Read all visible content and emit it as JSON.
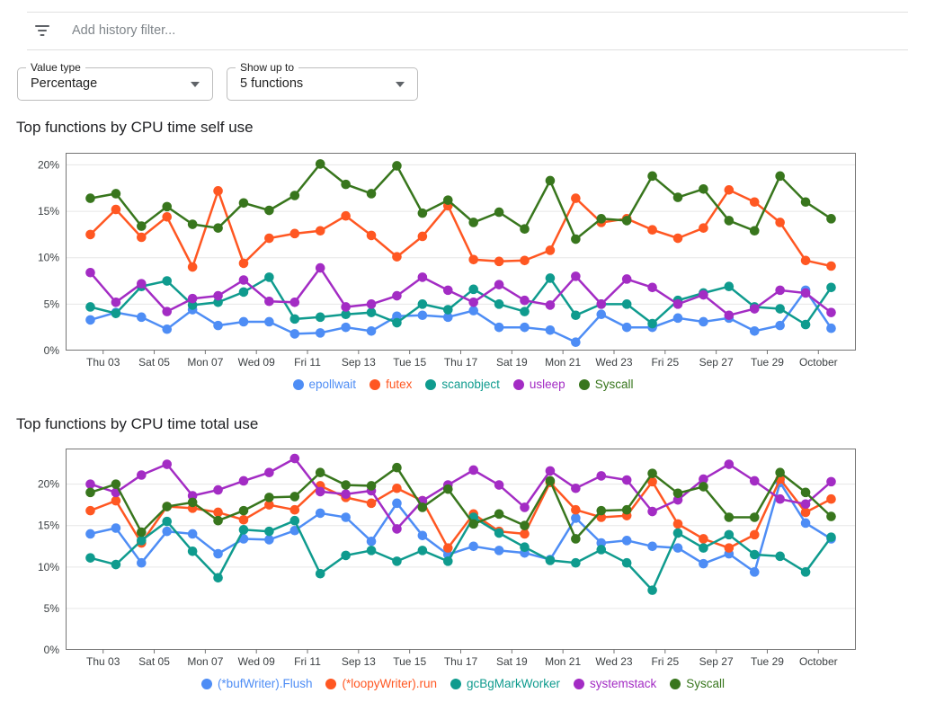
{
  "filter_bar": {
    "icon": "filter-icon",
    "placeholder": "Add history filter..."
  },
  "controls": [
    {
      "label": "Value type",
      "value": "Percentage"
    },
    {
      "label": "Show up to",
      "value": "5 functions"
    }
  ],
  "chart_data": [
    {
      "type": "line",
      "title": "Top functions by CPU time self use",
      "categories": [
        "Thu 03",
        "Sat 05",
        "Mon 07",
        "Wed 09",
        "Fri 11",
        "Sep 13",
        "Tue 15",
        "Thu 17",
        "Sat 19",
        "Mon 21",
        "Wed 23",
        "Fri 25",
        "Sep 27",
        "Tue 29",
        "October"
      ],
      "ytick_labels": [
        "0%",
        "5%",
        "10%",
        "15%",
        "20%"
      ],
      "yticks": [
        0,
        5,
        10,
        15,
        20
      ],
      "ylim": [
        0,
        21.3
      ],
      "grid": "horizontal",
      "legend_position": "bottom",
      "series": [
        {
          "name": "epollwait",
          "color": "#4e8df5",
          "values": [
            3.3,
            4.1,
            3.6,
            2.3,
            4.4,
            2.7,
            3.1,
            3.1,
            1.8,
            1.9,
            2.5,
            2.1,
            3.7,
            3.8,
            3.6,
            4.3,
            2.5,
            2.5,
            2.2,
            0.9,
            3.9,
            2.5,
            2.5,
            3.5,
            3.1,
            3.5,
            2.1,
            2.7,
            6.5,
            2.4
          ]
        },
        {
          "name": "futex",
          "color": "#ff5722",
          "values": [
            12.5,
            15.2,
            12.2,
            14.4,
            9.0,
            17.2,
            9.4,
            12.1,
            12.6,
            12.9,
            14.5,
            12.4,
            10.1,
            12.3,
            15.6,
            9.8,
            9.6,
            9.7,
            10.8,
            16.4,
            13.8,
            14.2,
            13.0,
            12.1,
            13.2,
            17.3,
            16.0,
            13.8,
            9.7,
            9.1
          ]
        },
        {
          "name": "scanobject",
          "color": "#0f9b8e",
          "values": [
            4.7,
            4.0,
            6.9,
            7.5,
            4.9,
            5.2,
            6.3,
            7.9,
            3.4,
            3.6,
            3.9,
            4.1,
            3.0,
            5.0,
            4.4,
            6.6,
            5.0,
            4.2,
            7.8,
            3.8,
            5.0,
            5.0,
            2.9,
            5.4,
            6.2,
            6.9,
            4.7,
            4.5,
            2.8,
            6.8
          ]
        },
        {
          "name": "usleep",
          "color": "#a32cc4",
          "values": [
            8.4,
            5.2,
            7.2,
            4.2,
            5.6,
            5.9,
            7.6,
            5.3,
            5.2,
            8.9,
            4.7,
            5.0,
            5.9,
            7.9,
            6.5,
            5.2,
            7.1,
            5.4,
            4.9,
            8.0,
            5.0,
            7.7,
            6.8,
            5.0,
            6.0,
            3.8,
            4.5,
            6.5,
            6.2,
            4.1
          ]
        },
        {
          "name": "Syscall",
          "color": "#38761d",
          "values": [
            16.4,
            16.9,
            13.4,
            15.5,
            13.6,
            13.2,
            15.9,
            15.1,
            16.7,
            20.1,
            17.9,
            16.9,
            19.9,
            14.8,
            16.2,
            13.8,
            14.9,
            13.1,
            18.3,
            12.0,
            14.2,
            14.0,
            18.8,
            16.5,
            17.4,
            14.0,
            12.9,
            18.8,
            16.0,
            14.2
          ]
        }
      ]
    },
    {
      "type": "line",
      "title": "Top functions by CPU time total use",
      "categories": [
        "Thu 03",
        "Sat 05",
        "Mon 07",
        "Wed 09",
        "Fri 11",
        "Sep 13",
        "Tue 15",
        "Thu 17",
        "Sat 19",
        "Mon 21",
        "Wed 23",
        "Fri 25",
        "Sep 27",
        "Tue 29",
        "October"
      ],
      "ytick_labels": [
        "0%",
        "5%",
        "10%",
        "15%",
        "20%"
      ],
      "yticks": [
        0,
        5,
        10,
        15,
        20
      ],
      "ylim": [
        0,
        24.3
      ],
      "grid": "horizontal",
      "legend_position": "bottom",
      "series": [
        {
          "name": "(*bufWriter).Flush",
          "color": "#4e8df5",
          "values": [
            14.0,
            14.7,
            10.5,
            14.3,
            14.0,
            11.6,
            13.4,
            13.3,
            14.4,
            16.5,
            16.0,
            13.1,
            17.7,
            13.8,
            11.5,
            12.5,
            12.0,
            11.7,
            10.9,
            15.9,
            12.9,
            13.2,
            12.5,
            12.3,
            10.4,
            11.6,
            9.4,
            20.2,
            15.3,
            13.4
          ]
        },
        {
          "name": "(*loopyWriter).run",
          "color": "#ff5722",
          "values": [
            16.8,
            18.0,
            12.9,
            17.3,
            17.1,
            16.6,
            15.7,
            17.5,
            16.9,
            19.8,
            18.4,
            17.7,
            19.5,
            18.0,
            12.3,
            16.4,
            14.3,
            14.0,
            20.2,
            16.9,
            16.0,
            16.2,
            20.3,
            15.2,
            13.4,
            12.3,
            13.9,
            20.6,
            16.6,
            18.2
          ]
        },
        {
          "name": "gcBgMarkWorker",
          "color": "#0f9b8e",
          "values": [
            11.1,
            10.3,
            13.2,
            15.5,
            11.9,
            8.7,
            14.5,
            14.3,
            15.6,
            9.2,
            11.4,
            12.0,
            10.7,
            12.0,
            10.7,
            16.0,
            14.1,
            12.4,
            10.8,
            10.5,
            12.1,
            10.5,
            7.2,
            14.1,
            12.3,
            13.9,
            11.5,
            11.3,
            9.4,
            13.6
          ]
        },
        {
          "name": "systemstack",
          "color": "#a32cc4",
          "values": [
            20.0,
            19.0,
            21.1,
            22.4,
            18.6,
            19.3,
            20.4,
            21.4,
            23.1,
            19.1,
            18.8,
            19.2,
            14.6,
            18.0,
            19.9,
            21.7,
            19.9,
            17.2,
            21.6,
            19.5,
            21.0,
            20.5,
            16.7,
            18.1,
            20.6,
            22.4,
            20.4,
            18.2,
            17.6,
            20.3
          ]
        },
        {
          "name": "Syscall",
          "color": "#38761d",
          "values": [
            19.0,
            20.0,
            14.2,
            17.3,
            17.8,
            15.6,
            16.8,
            18.4,
            18.5,
            21.4,
            19.9,
            19.8,
            22.0,
            17.2,
            19.4,
            15.2,
            16.4,
            15.0,
            20.4,
            13.4,
            16.8,
            16.9,
            21.3,
            18.9,
            19.7,
            16.0,
            16.0,
            21.4,
            19.0,
            16.1
          ]
        }
      ]
    }
  ]
}
